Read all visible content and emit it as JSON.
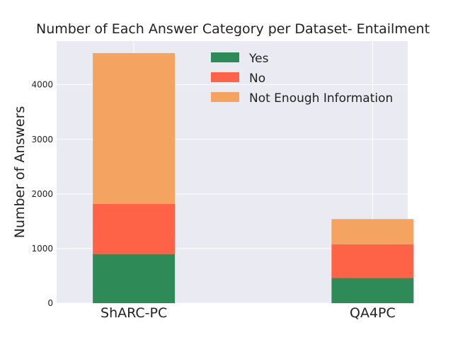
{
  "chart_data": {
    "type": "bar",
    "stacked": true,
    "title": "Number of Each Answer Category per Dataset- Entailment",
    "xlabel": "",
    "ylabel": "Number of Answers",
    "categories": [
      "ShARC-PC",
      "QA4PC"
    ],
    "series": [
      {
        "name": "Yes",
        "values": [
          900,
          460
        ],
        "color": "#2e8b57"
      },
      {
        "name": "No",
        "values": [
          920,
          620
        ],
        "color": "#ff6347"
      },
      {
        "name": "Not Enough Information",
        "values": [
          2760,
          460
        ],
        "color": "#f4a460"
      }
    ],
    "yticks": [
      0,
      1000,
      2000,
      3000,
      4000
    ],
    "ylim": [
      0,
      4800
    ],
    "grid": true,
    "legend_position": "top-center"
  }
}
